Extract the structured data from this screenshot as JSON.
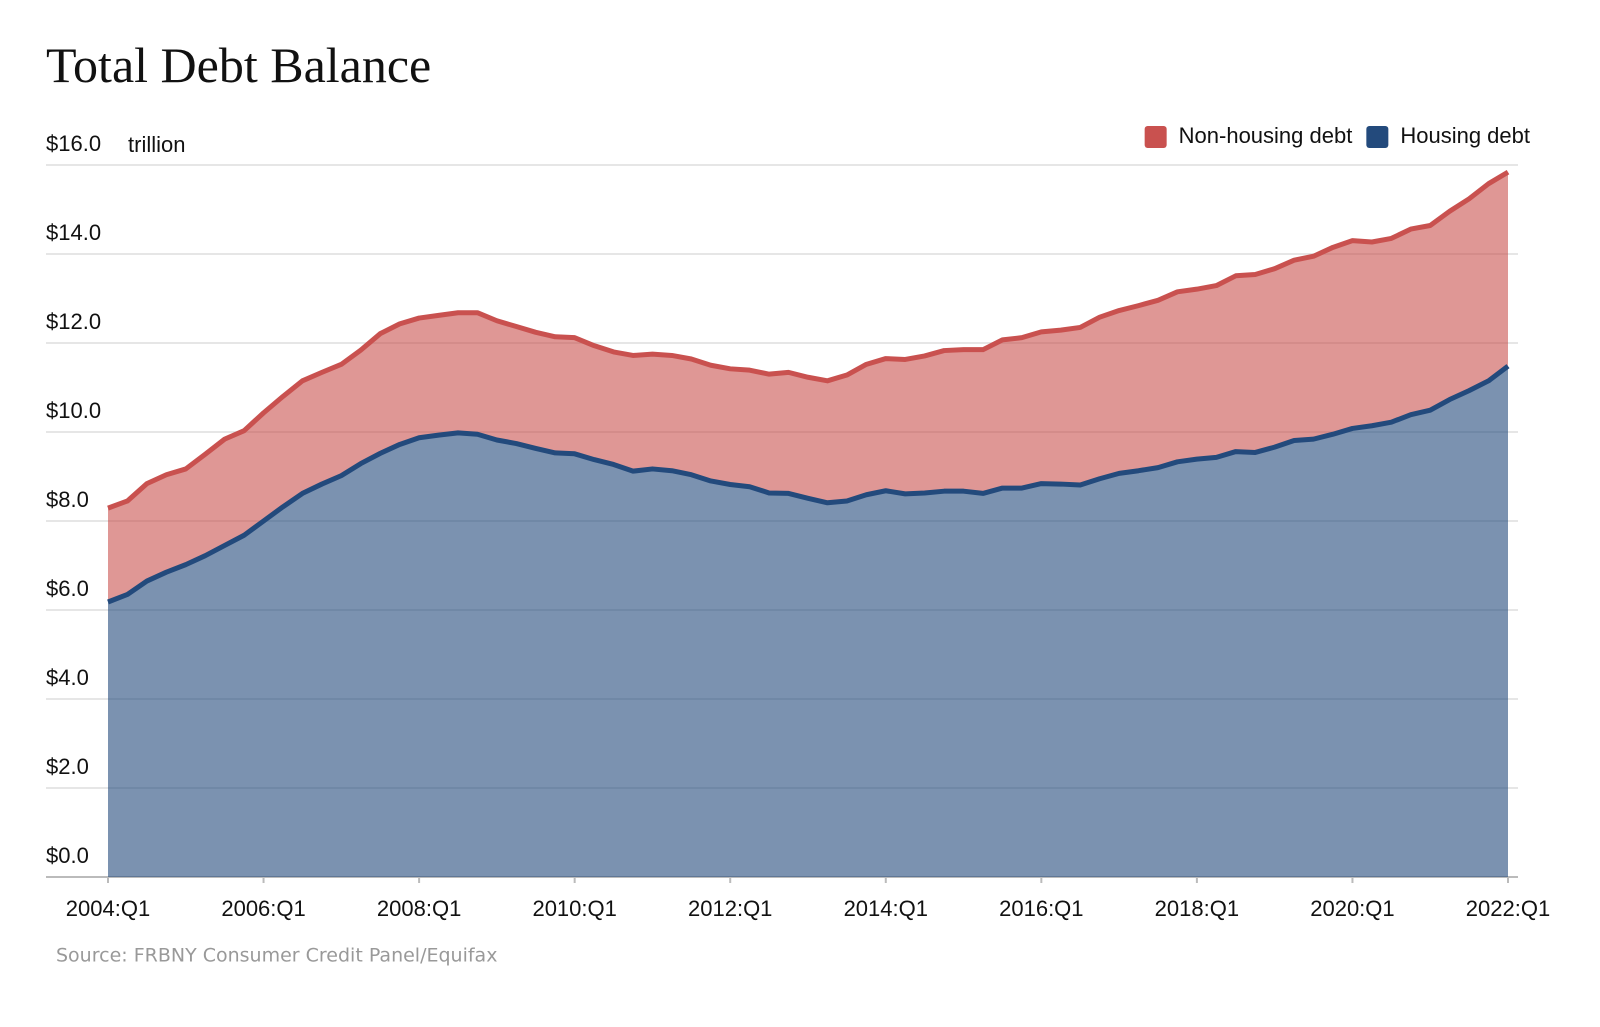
{
  "chart_data": {
    "type": "stacked_area",
    "title": "Total Debt Balance",
    "y_unit": "trillion",
    "source": "Source: FRBNY Consumer Credit Panel/Equifax",
    "categories": [
      "2004:Q1",
      null,
      null,
      null,
      null,
      null,
      null,
      null,
      "2006:Q1",
      null,
      null,
      null,
      null,
      null,
      null,
      null,
      "2008:Q1",
      null,
      null,
      null,
      null,
      null,
      null,
      null,
      "2010:Q1",
      null,
      null,
      null,
      null,
      null,
      null,
      null,
      "2012:Q1",
      null,
      null,
      null,
      null,
      null,
      null,
      null,
      "2014:Q1",
      null,
      null,
      null,
      null,
      null,
      null,
      null,
      "2016:Q1",
      null,
      null,
      null,
      null,
      null,
      null,
      null,
      "2018:Q1",
      null,
      null,
      null,
      null,
      null,
      null,
      null,
      "2020:Q1",
      null,
      null,
      null,
      null,
      null,
      null,
      null,
      "2022:Q1"
    ],
    "series": [
      {
        "name": "Non-housing debt",
        "color": "#c9514f",
        "values": [
          2.11,
          2.1,
          2.19,
          2.19,
          2.15,
          2.28,
          2.39,
          2.35,
          2.43,
          2.48,
          2.53,
          2.51,
          2.5,
          2.55,
          2.69,
          2.71,
          2.69,
          2.69,
          2.7,
          2.73,
          2.68,
          2.63,
          2.61,
          2.61,
          2.61,
          2.56,
          2.53,
          2.6,
          2.58,
          2.59,
          2.6,
          2.6,
          2.6,
          2.62,
          2.67,
          2.72,
          2.72,
          2.74,
          2.83,
          2.93,
          2.97,
          3.02,
          3.08,
          3.16,
          3.18,
          3.23,
          3.33,
          3.38,
          3.41,
          3.46,
          3.54,
          3.63,
          3.66,
          3.71,
          3.76,
          3.82,
          3.82,
          3.86,
          3.95,
          4.0,
          4.01,
          4.05,
          4.11,
          4.2,
          4.22,
          4.13,
          4.13,
          4.17,
          4.15,
          4.23,
          4.31,
          4.43,
          4.36
        ]
      },
      {
        "name": "Housing debt",
        "color": "#234a7c",
        "values": [
          6.18,
          6.35,
          6.65,
          6.85,
          7.02,
          7.22,
          7.45,
          7.68,
          8.0,
          8.32,
          8.62,
          8.83,
          9.02,
          9.29,
          9.52,
          9.72,
          9.87,
          9.93,
          9.98,
          9.95,
          9.82,
          9.74,
          9.63,
          9.53,
          9.51,
          9.38,
          9.27,
          9.12,
          9.17,
          9.13,
          9.04,
          8.9,
          8.82,
          8.77,
          8.63,
          8.62,
          8.51,
          8.41,
          8.45,
          8.59,
          8.68,
          8.61,
          8.63,
          8.67,
          8.67,
          8.62,
          8.74,
          8.74,
          8.84,
          8.83,
          8.81,
          8.95,
          9.07,
          9.13,
          9.2,
          9.33,
          9.39,
          9.43,
          9.56,
          9.54,
          9.66,
          9.81,
          9.84,
          9.95,
          10.08,
          10.14,
          10.22,
          10.39,
          10.49,
          10.73,
          10.93,
          11.15,
          11.48
        ]
      }
    ],
    "ylim": [
      0,
      16
    ],
    "yticks": [
      {
        "value": 0,
        "label": "$0.0"
      },
      {
        "value": 2,
        "label": "$2.0"
      },
      {
        "value": 4,
        "label": "$4.0"
      },
      {
        "value": 6,
        "label": "$6.0"
      },
      {
        "value": 8,
        "label": "$8.0"
      },
      {
        "value": 10,
        "label": "$10.0"
      },
      {
        "value": 12,
        "label": "$12.0"
      },
      {
        "value": 14,
        "label": "$14.0"
      },
      {
        "value": 16,
        "label": "$16.0"
      }
    ],
    "grid": true,
    "legend": "top-right"
  }
}
